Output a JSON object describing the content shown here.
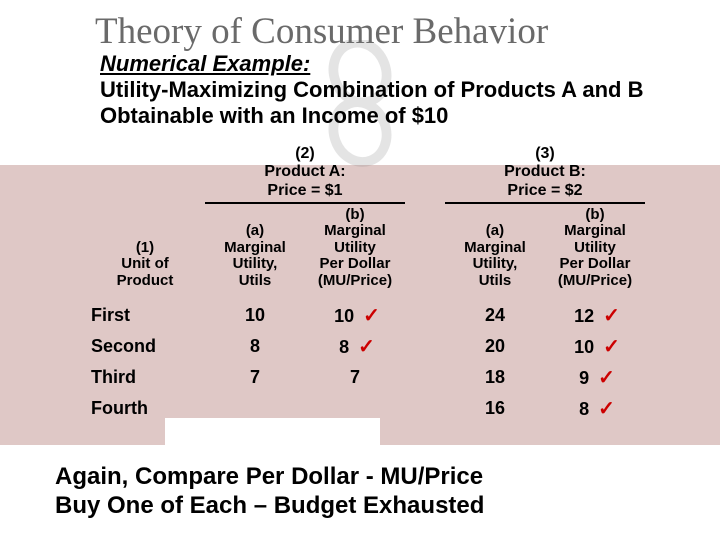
{
  "title": "Theory of Consumer Behavior",
  "heading": {
    "line1": "Numerical Example:",
    "line2": "Utility-Maximizing Combination of Products A and B Obtainable with an Income of $10"
  },
  "table": {
    "col1_header": "(1)\nUnit of\nProduct",
    "group_a": {
      "title": "(2)\nProduct A:\nPrice = $1",
      "sub_a": "(a)\nMarginal\nUtility,\nUtils",
      "sub_b": "(b)\nMarginal\nUtility\nPer Dollar\n(MU/Price)"
    },
    "group_b": {
      "title": "(3)\nProduct B:\nPrice = $2",
      "sub_a": "(a)\nMarginal\nUtility,\nUtils",
      "sub_b": "(b)\nMarginal\nUtility\nPer Dollar\n(MU/Price)"
    },
    "rows": [
      {
        "label": "First",
        "a_mu": "10",
        "a_mup": "10",
        "b_mu": "24",
        "b_mup": "12",
        "check_a": true,
        "check_b": true
      },
      {
        "label": "Second",
        "a_mu": "8",
        "a_mup": "8",
        "b_mu": "20",
        "b_mup": "10",
        "check_a": true,
        "check_b": true
      },
      {
        "label": "Third",
        "a_mu": "7",
        "a_mup": "7",
        "b_mu": "18",
        "b_mup": "9",
        "check_a": false,
        "check_b": true
      },
      {
        "label": "Fourth",
        "a_mu": "",
        "a_mup": "",
        "b_mu": "16",
        "b_mup": "8",
        "check_a": false,
        "check_b": true
      }
    ]
  },
  "footer": {
    "line1": "Again, Compare Per Dollar - MU/Price",
    "line2": "Buy One of Each  – Budget Exhausted"
  },
  "colors": {
    "table_bg": "#dfc8c6",
    "check": "#cc0000",
    "title": "#6a6a6a",
    "text": "#000000",
    "white": "#ffffff"
  },
  "checkmark_glyph": "✓"
}
